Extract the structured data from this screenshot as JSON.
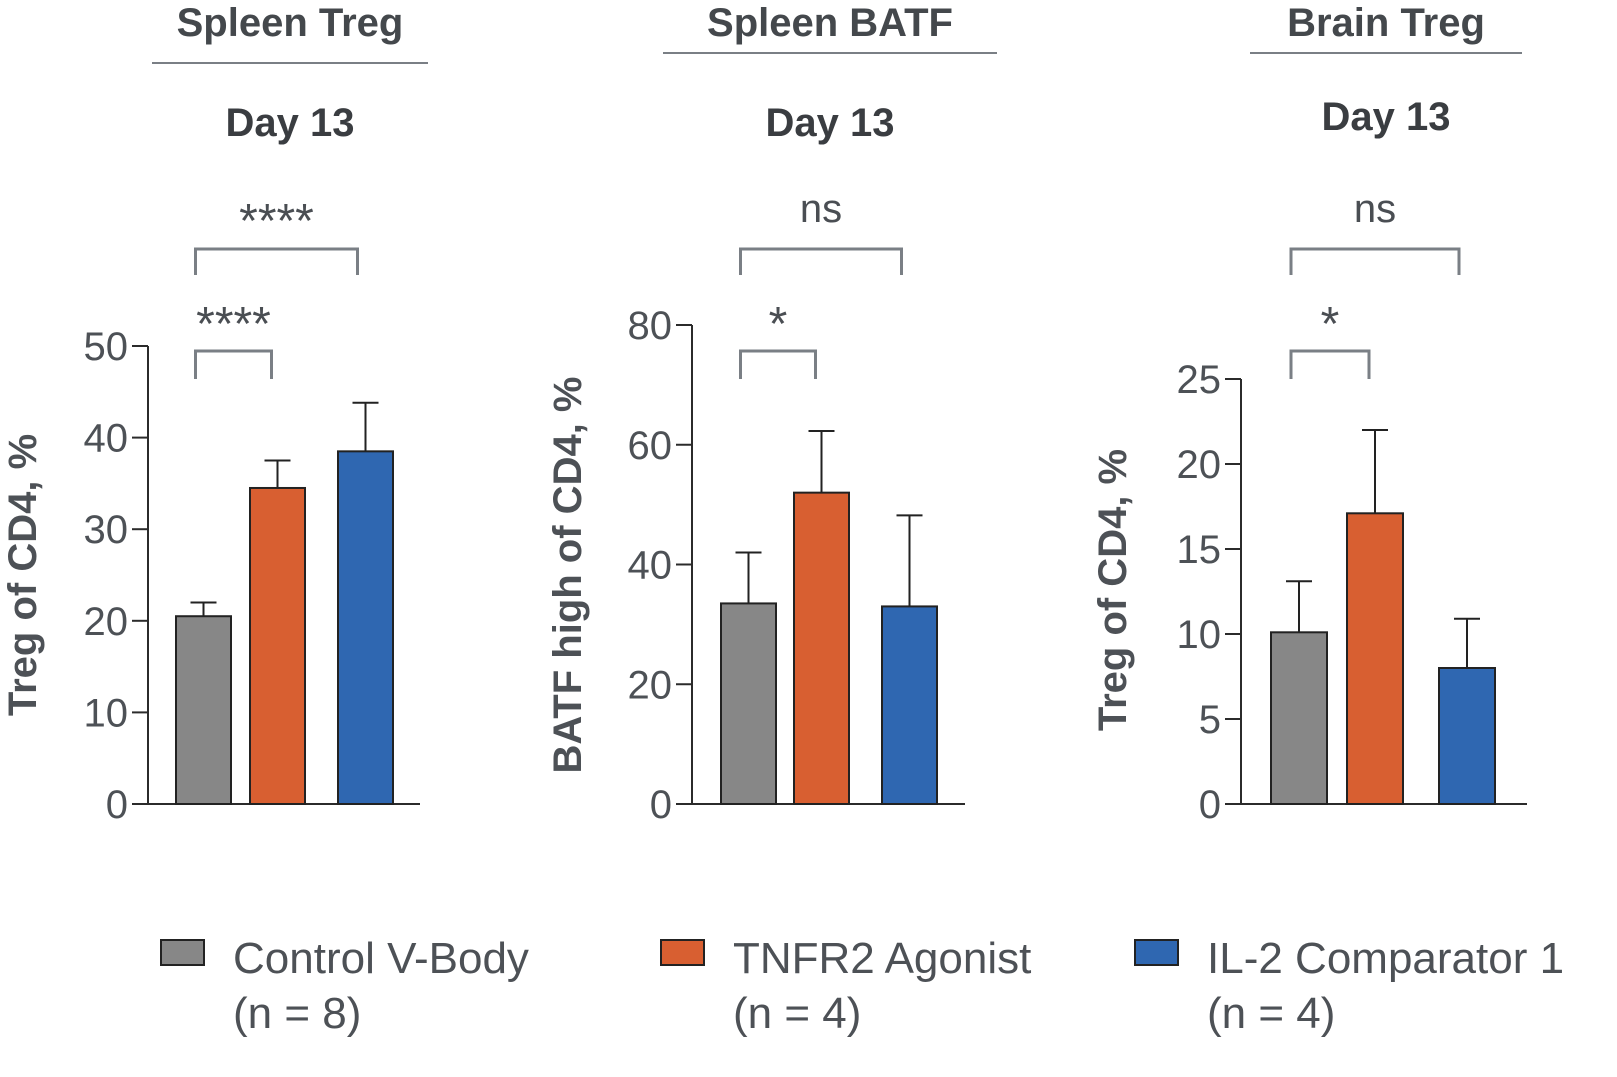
{
  "chart_data": [
    {
      "type": "bar",
      "title": "Spleen Treg",
      "subtitle": "Day 13",
      "ylabel": "Treg of CD4, %",
      "ylim": [
        0,
        50
      ],
      "yticks": [
        0,
        10,
        20,
        30,
        40,
        50
      ],
      "categories": [
        "Control V-Body",
        "TNFR2 Agonist",
        "IL-2 Comparator 1"
      ],
      "values": [
        20.5,
        34.5,
        38.5
      ],
      "errors": [
        1.5,
        3.0,
        5.3
      ],
      "significance": [
        {
          "from": 0,
          "to": 1,
          "label": "****"
        },
        {
          "from": 0,
          "to": 2,
          "label": "****"
        }
      ]
    },
    {
      "type": "bar",
      "title": "Spleen BATF",
      "subtitle": "Day 13",
      "ylabel": "BATF high of CD4, %",
      "ylim": [
        0,
        80
      ],
      "yticks": [
        0,
        20,
        40,
        60,
        80
      ],
      "categories": [
        "Control V-Body",
        "TNFR2 Agonist",
        "IL-2 Comparator 1"
      ],
      "values": [
        33.5,
        52.0,
        33.0
      ],
      "errors": [
        8.5,
        10.3,
        15.2
      ],
      "significance": [
        {
          "from": 0,
          "to": 1,
          "label": "*"
        },
        {
          "from": 0,
          "to": 2,
          "label": "ns"
        }
      ]
    },
    {
      "type": "bar",
      "title": "Brain Treg",
      "subtitle": "Day 13",
      "ylabel": "Treg of CD4, %",
      "ylim": [
        0,
        25
      ],
      "yticks": [
        0,
        5,
        10,
        15,
        20,
        25
      ],
      "categories": [
        "Control V-Body",
        "TNFR2 Agonist",
        "IL-2 Comparator 1"
      ],
      "values": [
        10.1,
        17.1,
        8.0
      ],
      "errors": [
        3.0,
        4.9,
        2.9
      ],
      "significance": [
        {
          "from": 0,
          "to": 1,
          "label": "*"
        },
        {
          "from": 0,
          "to": 2,
          "label": "ns"
        }
      ]
    }
  ],
  "legend": [
    {
      "name": "Control V-Body",
      "n": "(n = 8)",
      "color": "#878787"
    },
    {
      "name": "TNFR2 Agonist",
      "n": "(n = 4)",
      "color": "#d85f31"
    },
    {
      "name": "IL-2 Comparator 1",
      "n": "(n = 4)",
      "color": "#2f67b1"
    }
  ],
  "colors": {
    "axis": "#2b2b2b",
    "bracket": "#7a7f85",
    "title_rule": "#7a7f85",
    "bar_outline": "#222222"
  }
}
